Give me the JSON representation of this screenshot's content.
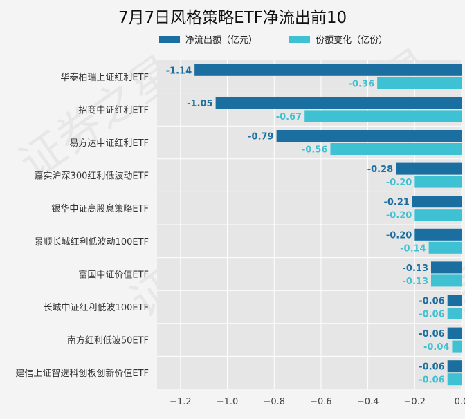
{
  "colors": {
    "outflow": "#1a6ea0",
    "share": "#3ec1d3",
    "plot_bg": "#e6e6e6",
    "grid": "#ffffff"
  },
  "watermark": "证券之星",
  "chart_data": {
    "type": "bar",
    "orientation": "horizontal",
    "title": "7月7日风格策略ETF净流出前10",
    "categories": [
      "华泰柏瑞上证红利ETF",
      "招商中证红利ETF",
      "易方达中证红利ETF",
      "嘉实沪深300红利低波动ETF",
      "银华中证高股息策略ETF",
      "景顺长城红利低波动100ETF",
      "富国中证价值ETF",
      "长城中证红利低波100ETF",
      "南方红利低波50ETF",
      "建信上证智选科创板创新价值ETF"
    ],
    "series": [
      {
        "name": "净流出额（亿元）",
        "values": [
          -1.14,
          -1.05,
          -0.79,
          -0.28,
          -0.21,
          -0.2,
          -0.13,
          -0.06,
          -0.06,
          -0.06
        ],
        "labels": [
          "-1.14",
          "-1.05",
          "-0.79",
          "-0.28",
          "-0.21",
          "-0.20",
          "-0.13",
          "-0.06",
          "-0.06",
          "-0.06"
        ]
      },
      {
        "name": "份额变化（亿份）",
        "values": [
          -0.36,
          -0.67,
          -0.56,
          -0.2,
          -0.2,
          -0.14,
          -0.13,
          -0.06,
          -0.04,
          -0.06
        ],
        "labels": [
          "-0.36",
          "-0.67",
          "-0.56",
          "-0.20",
          "-0.20",
          "-0.14",
          "-0.13",
          "-0.06",
          "-0.04",
          "-0.06"
        ]
      }
    ],
    "xlim": [
      -1.3,
      0.0
    ],
    "xticks": [
      -1.2,
      -1.0,
      -0.8,
      -0.6,
      -0.4,
      -0.2,
      0.0
    ],
    "xtick_labels": [
      "−1.2",
      "−1.0",
      "−0.8",
      "−0.6",
      "−0.4",
      "−0.2",
      "0.0"
    ],
    "grid": true,
    "legend": "top"
  }
}
